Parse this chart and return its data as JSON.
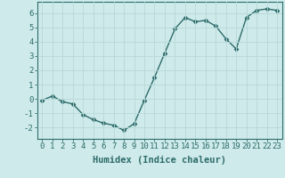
{
  "x": [
    0,
    1,
    2,
    3,
    4,
    5,
    6,
    7,
    8,
    9,
    10,
    11,
    12,
    13,
    14,
    15,
    16,
    17,
    18,
    19,
    20,
    21,
    22,
    23
  ],
  "y": [
    -0.1,
    0.2,
    -0.2,
    -0.35,
    -1.1,
    -1.45,
    -1.7,
    -1.85,
    -2.2,
    -1.75,
    -0.1,
    1.5,
    3.2,
    4.9,
    5.7,
    5.4,
    5.5,
    5.1,
    4.2,
    3.5,
    5.7,
    6.2,
    6.3,
    6.2
  ],
  "xlabel": "Humidex (Indice chaleur)",
  "ylim": [
    -2.8,
    6.8
  ],
  "xlim": [
    -0.5,
    23.5
  ],
  "line_color": "#2e6b6b",
  "bg_color": "#ceeaea",
  "grid_color": "#b8d8d8",
  "tick_color": "#2e6b6b",
  "label_color": "#2e6b6b",
  "yticks": [
    -2,
    -1,
    0,
    1,
    2,
    3,
    4,
    5,
    6
  ],
  "xticks": [
    0,
    1,
    2,
    3,
    4,
    5,
    6,
    7,
    8,
    9,
    10,
    11,
    12,
    13,
    14,
    15,
    16,
    17,
    18,
    19,
    20,
    21,
    22,
    23
  ],
  "marker": "D",
  "markersize": 2.5,
  "linewidth": 1.0,
  "xlabel_fontsize": 7.5,
  "tick_fontsize": 6.5
}
